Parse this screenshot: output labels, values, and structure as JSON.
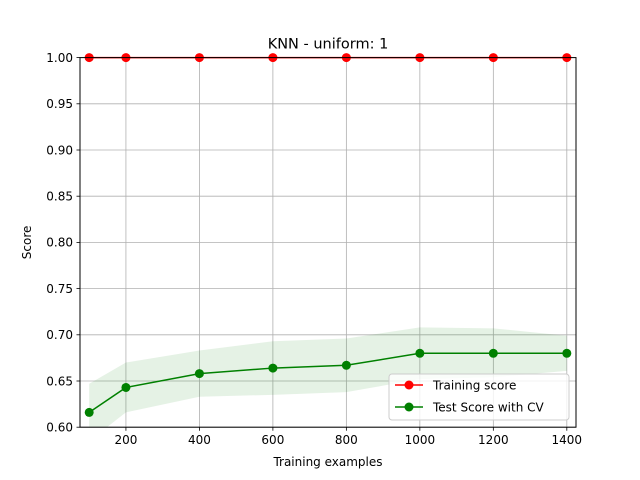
{
  "chart_data": {
    "type": "line",
    "title": "KNN - uniform: 1",
    "xlabel": "Training examples",
    "ylabel": "Score",
    "xlim": [
      75,
      1425
    ],
    "ylim": [
      0.6,
      1.0
    ],
    "xticks": [
      200,
      400,
      600,
      800,
      1000,
      1200,
      1400
    ],
    "yticks": [
      0.6,
      0.65,
      0.7,
      0.75,
      0.8,
      0.85,
      0.9,
      0.95,
      1.0
    ],
    "xtick_labels": [
      "200",
      "400",
      "600",
      "800",
      "1000",
      "1200",
      "1400"
    ],
    "ytick_labels": [
      "0.60",
      "0.65",
      "0.70",
      "0.75",
      "0.80",
      "0.85",
      "0.90",
      "0.95",
      "1.00"
    ],
    "grid": true,
    "legend_position": "bottom-right",
    "x": [
      100,
      200,
      400,
      600,
      800,
      1000,
      1200,
      1400
    ],
    "series": [
      {
        "name": "Training score",
        "color": "#ff0000",
        "values": [
          1.0,
          1.0,
          1.0,
          1.0,
          1.0,
          1.0,
          1.0,
          1.0
        ],
        "band_lower": [
          1.0,
          1.0,
          1.0,
          1.0,
          1.0,
          1.0,
          1.0,
          1.0
        ],
        "band_upper": [
          1.0,
          1.0,
          1.0,
          1.0,
          1.0,
          1.0,
          1.0,
          1.0
        ]
      },
      {
        "name": "Test Score with CV",
        "color": "#008000",
        "values": [
          0.616,
          0.643,
          0.658,
          0.664,
          0.667,
          0.68,
          0.68,
          0.68
        ],
        "band_lower": [
          0.585,
          0.616,
          0.633,
          0.635,
          0.638,
          0.652,
          0.654,
          0.661
        ],
        "band_upper": [
          0.647,
          0.67,
          0.683,
          0.693,
          0.696,
          0.708,
          0.707,
          0.699
        ]
      }
    ]
  }
}
